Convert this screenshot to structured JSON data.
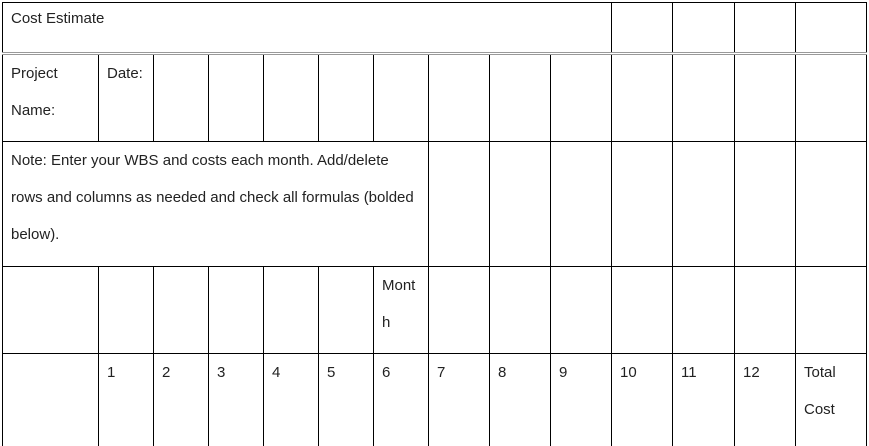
{
  "title": "Cost Estimate",
  "project_label": "Project Name:",
  "date_label": "Date:",
  "note": "Note: Enter your WBS and costs each month. Add/delete rows and columns as needed and check all formulas (bolded below).",
  "month_label": "Month",
  "months": [
    "1",
    "2",
    "3",
    "4",
    "5",
    "6",
    "7",
    "8",
    "9",
    "10",
    "11",
    "12"
  ],
  "total_label": "Total Cost"
}
